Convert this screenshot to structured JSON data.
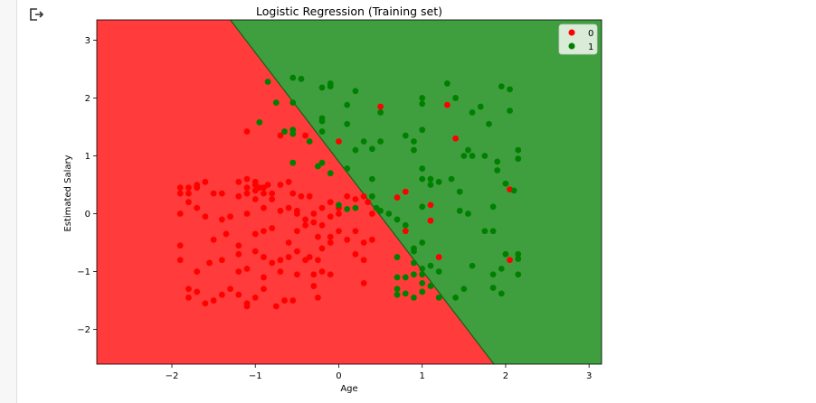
{
  "output_icon": "output-arrow-icon",
  "chart_data": {
    "type": "scatter",
    "title": "Logistic Regression (Training set)",
    "xlabel": "Age",
    "ylabel": "Estimated Salary",
    "xlim": [
      -2.9,
      3.15
    ],
    "ylim": [
      -2.6,
      3.35
    ],
    "xticks": [
      -2,
      -1,
      0,
      1,
      2,
      3
    ],
    "xtick_labels": [
      "−2",
      "−1",
      "0",
      "1",
      "2",
      "3"
    ],
    "yticks": [
      -2,
      -1,
      0,
      1,
      2,
      3
    ],
    "ytick_labels": [
      "−2",
      "−1",
      "0",
      "1",
      "2",
      "3"
    ],
    "background_regions": [
      {
        "class": "0",
        "color": "#ff3b3b"
      },
      {
        "class": "1",
        "color": "#3f9f3f"
      }
    ],
    "decision_boundary": [
      [
        -1.3,
        3.35
      ],
      [
        1.86,
        -2.6
      ]
    ],
    "legend": {
      "placement": "top-right",
      "entries": [
        {
          "label": "0",
          "color": "#ff0000"
        },
        {
          "label": "1",
          "color": "#008000"
        }
      ]
    },
    "series": [
      {
        "name": "0",
        "color": "#ff0000",
        "points": [
          [
            -1.9,
            0.45
          ],
          [
            -1.9,
            0.35
          ],
          [
            -1.8,
            0.45
          ],
          [
            -1.8,
            0.35
          ],
          [
            -1.7,
            0.45
          ],
          [
            -1.7,
            0.5
          ],
          [
            -1.6,
            0.55
          ],
          [
            -1.5,
            0.35
          ],
          [
            -1.4,
            0.35
          ],
          [
            -1.2,
            0.55
          ],
          [
            -1.1,
            0.6
          ],
          [
            -1.0,
            0.55
          ],
          [
            -0.95,
            0.45
          ],
          [
            -0.85,
            0.5
          ],
          [
            -0.8,
            0.35
          ],
          [
            -0.7,
            0.5
          ],
          [
            -0.6,
            0.55
          ],
          [
            -1.2,
            0.3
          ],
          [
            -1.1,
            0.35
          ],
          [
            -1.0,
            0.25
          ],
          [
            -0.9,
            0.35
          ],
          [
            -0.8,
            0.25
          ],
          [
            -1.1,
            0.45
          ],
          [
            -1.0,
            0.4
          ],
          [
            -0.9,
            0.45
          ],
          [
            -0.55,
            0.35
          ],
          [
            -0.45,
            0.3
          ],
          [
            -0.35,
            0.3
          ],
          [
            -1.0,
            0.5
          ],
          [
            -1.8,
            0.2
          ],
          [
            -1.7,
            0.1
          ],
          [
            -1.9,
            0.0
          ],
          [
            -1.6,
            -0.05
          ],
          [
            -1.4,
            -0.1
          ],
          [
            -1.3,
            -0.05
          ],
          [
            -1.1,
            0.0
          ],
          [
            -0.9,
            0.1
          ],
          [
            -0.7,
            0.05
          ],
          [
            -0.6,
            0.1
          ],
          [
            -0.5,
            0.05
          ],
          [
            -0.3,
            0.0
          ],
          [
            -0.2,
            0.1
          ],
          [
            -0.1,
            0.2
          ],
          [
            0.0,
            0.1
          ],
          [
            0.1,
            0.3
          ],
          [
            0.2,
            0.25
          ],
          [
            0.3,
            0.3
          ],
          [
            0.35,
            0.2
          ],
          [
            0.4,
            0.0
          ],
          [
            0.0,
            0.0
          ],
          [
            -0.1,
            -0.05
          ],
          [
            -1.5,
            -0.45
          ],
          [
            -1.35,
            -0.35
          ],
          [
            -1.2,
            -0.55
          ],
          [
            -1.0,
            -0.35
          ],
          [
            -0.9,
            -0.3
          ],
          [
            -0.8,
            -0.25
          ],
          [
            -0.6,
            -0.5
          ],
          [
            -0.5,
            -0.3
          ],
          [
            -0.4,
            -0.2
          ],
          [
            -0.3,
            -0.15
          ],
          [
            -0.2,
            -0.2
          ],
          [
            -0.1,
            -0.4
          ],
          [
            0.0,
            -0.3
          ],
          [
            0.1,
            -0.45
          ],
          [
            0.2,
            -0.3
          ],
          [
            0.3,
            -0.5
          ],
          [
            0.4,
            -0.45
          ],
          [
            -1.9,
            -0.55
          ],
          [
            -1.9,
            -0.8
          ],
          [
            -1.7,
            -1.0
          ],
          [
            -1.55,
            -0.85
          ],
          [
            -1.4,
            -0.8
          ],
          [
            -1.2,
            -0.7
          ],
          [
            -1.0,
            -0.65
          ],
          [
            -0.9,
            -0.75
          ],
          [
            -0.8,
            -0.85
          ],
          [
            -0.7,
            -0.8
          ],
          [
            -0.6,
            -0.75
          ],
          [
            -0.5,
            -0.65
          ],
          [
            -0.4,
            -0.8
          ],
          [
            -0.35,
            -0.75
          ],
          [
            -0.25,
            -0.8
          ],
          [
            -0.2,
            -0.6
          ],
          [
            -0.1,
            -0.5
          ],
          [
            0.2,
            -0.7
          ],
          [
            0.3,
            -0.8
          ],
          [
            -1.2,
            -1.0
          ],
          [
            -1.1,
            -0.95
          ],
          [
            -0.9,
            -1.1
          ],
          [
            -0.7,
            -1.0
          ],
          [
            -0.5,
            -1.05
          ],
          [
            -0.3,
            -1.05
          ],
          [
            -0.2,
            -1.0
          ],
          [
            -0.1,
            -1.05
          ],
          [
            -1.8,
            -1.3
          ],
          [
            -1.8,
            -1.45
          ],
          [
            -1.7,
            -1.35
          ],
          [
            -1.6,
            -1.55
          ],
          [
            -1.5,
            -1.5
          ],
          [
            -1.4,
            -1.4
          ],
          [
            -1.3,
            -1.3
          ],
          [
            -1.2,
            -1.4
          ],
          [
            -1.1,
            -1.55
          ],
          [
            -1.1,
            -1.6
          ],
          [
            -1.0,
            -1.45
          ],
          [
            -0.9,
            -1.3
          ],
          [
            -0.75,
            -1.6
          ],
          [
            -0.65,
            -1.5
          ],
          [
            -0.55,
            -1.5
          ],
          [
            -0.3,
            -1.25
          ],
          [
            -0.25,
            -1.45
          ],
          [
            0.3,
            -1.2
          ],
          [
            -0.5,
            0.0
          ],
          [
            -0.4,
            -0.1
          ],
          [
            -0.25,
            -0.4
          ],
          [
            -1.1,
            1.42
          ],
          [
            -0.4,
            1.35
          ],
          [
            -0.7,
            1.35
          ],
          [
            0.0,
            1.25
          ],
          [
            0.5,
            1.85
          ],
          [
            1.3,
            1.88
          ],
          [
            1.4,
            1.3
          ],
          [
            0.7,
            0.28
          ],
          [
            0.8,
            0.38
          ],
          [
            0.8,
            -0.3
          ],
          [
            1.1,
            0.15
          ],
          [
            1.1,
            -0.12
          ],
          [
            1.2,
            -0.75
          ],
          [
            2.05,
            0.42
          ],
          [
            2.05,
            -0.8
          ]
        ]
      },
      {
        "name": "1",
        "color": "#008000",
        "points": [
          [
            -0.85,
            2.28
          ],
          [
            -0.75,
            1.92
          ],
          [
            -0.55,
            1.92
          ],
          [
            -0.55,
            2.35
          ],
          [
            -0.45,
            2.33
          ],
          [
            -0.2,
            2.18
          ],
          [
            -0.1,
            2.2
          ],
          [
            -0.1,
            2.25
          ],
          [
            0.1,
            1.88
          ],
          [
            0.1,
            1.55
          ],
          [
            -0.2,
            1.65
          ],
          [
            -0.2,
            1.6
          ],
          [
            -0.95,
            1.58
          ],
          [
            -0.65,
            1.42
          ],
          [
            -0.55,
            1.38
          ],
          [
            -0.55,
            1.45
          ],
          [
            -0.2,
            1.42
          ],
          [
            -0.35,
            1.25
          ],
          [
            0.2,
            2.12
          ],
          [
            0.2,
            1.1
          ],
          [
            0.3,
            1.25
          ],
          [
            0.4,
            1.12
          ],
          [
            0.5,
            1.25
          ],
          [
            -0.55,
            0.88
          ],
          [
            -0.25,
            0.82
          ],
          [
            -0.2,
            0.88
          ],
          [
            0.1,
            0.78
          ],
          [
            0.4,
            0.6
          ],
          [
            -0.1,
            0.7
          ],
          [
            0.0,
            0.15
          ],
          [
            0.1,
            0.08
          ],
          [
            0.2,
            0.1
          ],
          [
            0.4,
            0.3
          ],
          [
            0.45,
            0.1
          ],
          [
            0.5,
            0.05
          ],
          [
            0.6,
            0.0
          ],
          [
            0.7,
            -0.1
          ],
          [
            0.8,
            -0.2
          ],
          [
            0.9,
            -0.6
          ],
          [
            1.0,
            -0.5
          ],
          [
            0.9,
            -0.65
          ],
          [
            0.7,
            -0.75
          ],
          [
            0.9,
            -0.85
          ],
          [
            1.0,
            -0.95
          ],
          [
            1.1,
            -0.9
          ],
          [
            1.2,
            -1.0
          ],
          [
            1.0,
            -1.05
          ],
          [
            0.9,
            -1.05
          ],
          [
            0.8,
            -1.1
          ],
          [
            0.7,
            -1.1
          ],
          [
            0.7,
            -1.3
          ],
          [
            0.7,
            -1.4
          ],
          [
            0.8,
            -1.38
          ],
          [
            0.9,
            -1.45
          ],
          [
            1.0,
            -1.2
          ],
          [
            1.1,
            -1.25
          ],
          [
            1.0,
            -1.35
          ],
          [
            1.2,
            -1.45
          ],
          [
            1.4,
            -1.45
          ],
          [
            1.5,
            -1.3
          ],
          [
            1.0,
            0.6
          ],
          [
            1.1,
            0.5
          ],
          [
            1.2,
            0.55
          ],
          [
            1.35,
            0.6
          ],
          [
            1.45,
            0.38
          ],
          [
            1.0,
            0.12
          ],
          [
            1.45,
            0.05
          ],
          [
            1.55,
            0.0
          ],
          [
            1.75,
            -0.3
          ],
          [
            1.85,
            -0.3
          ],
          [
            1.85,
            0.12
          ],
          [
            2.0,
            0.52
          ],
          [
            2.1,
            0.4
          ],
          [
            1.0,
            0.78
          ],
          [
            1.1,
            0.6
          ],
          [
            1.0,
            1.45
          ],
          [
            0.9,
            1.25
          ],
          [
            0.9,
            1.1
          ],
          [
            0.8,
            1.35
          ],
          [
            1.0,
            1.9
          ],
          [
            1.0,
            2.0
          ],
          [
            1.3,
            2.25
          ],
          [
            1.4,
            2.0
          ],
          [
            1.6,
            1.75
          ],
          [
            1.7,
            1.85
          ],
          [
            1.8,
            1.55
          ],
          [
            1.95,
            2.2
          ],
          [
            2.05,
            2.15
          ],
          [
            2.05,
            1.78
          ],
          [
            1.5,
            1.0
          ],
          [
            1.55,
            1.1
          ],
          [
            1.6,
            1.0
          ],
          [
            1.75,
            1.0
          ],
          [
            1.9,
            0.9
          ],
          [
            1.9,
            0.75
          ],
          [
            2.15,
            1.1
          ],
          [
            2.15,
            0.95
          ],
          [
            1.6,
            -0.9
          ],
          [
            1.85,
            -1.05
          ],
          [
            1.95,
            -0.95
          ],
          [
            1.85,
            -1.28
          ],
          [
            1.95,
            -1.38
          ],
          [
            2.15,
            -0.7
          ],
          [
            2.15,
            -0.78
          ],
          [
            2.15,
            -1.05
          ],
          [
            2.0,
            -0.7
          ],
          [
            0.5,
            1.75
          ]
        ]
      }
    ]
  }
}
